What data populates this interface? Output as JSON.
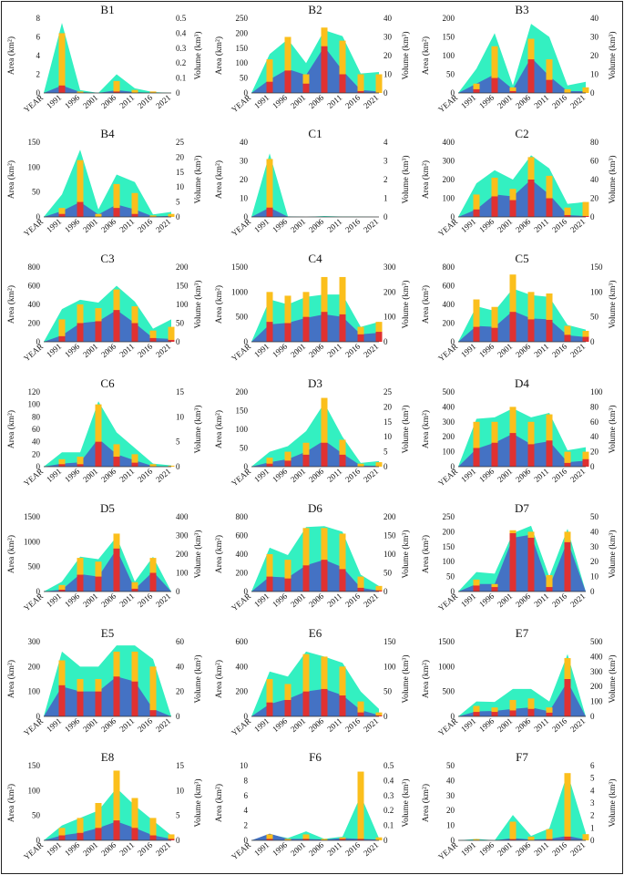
{
  "figure": {
    "colors": {
      "area_total": "#33f0c1",
      "area_lower": "#4472c4",
      "volume_bar": "#fbbf1c",
      "volume_bar_inner": "#e03131"
    },
    "xlabels": [
      "YEAR",
      "1991",
      "1996",
      "2001",
      "2006",
      "2011",
      "2016",
      "2021"
    ],
    "left_axis_label": "Area (km²)",
    "right_axis_label": "Volume (km³)"
  },
  "chart_data": [
    {
      "title": "B1",
      "type": "area",
      "ylim": [
        0,
        8
      ],
      "yticks": [
        0,
        2,
        4,
        6,
        8
      ],
      "y2lim": [
        0,
        0.5
      ],
      "y2ticks": [
        "0",
        "0.1",
        "0.2",
        "0.3",
        "0.4",
        "0.5"
      ],
      "total": [
        0,
        7.5,
        0.3,
        0,
        2,
        0.5,
        0.1,
        0
      ],
      "lower": [
        0,
        0.8,
        0.1,
        0,
        0.3,
        0.1,
        0,
        0
      ],
      "bar": [
        0,
        0.4,
        0.01,
        0,
        0.08,
        0.02,
        0.01,
        0
      ],
      "bar_inner": [
        0,
        0.05,
        0,
        0,
        0.01,
        0,
        0,
        0
      ]
    },
    {
      "title": "B2",
      "type": "area",
      "ylim": [
        0,
        250
      ],
      "yticks": [
        0,
        50,
        100,
        150,
        200,
        250
      ],
      "y2lim": [
        0,
        40
      ],
      "y2ticks": [
        "0",
        "10",
        "20",
        "30",
        "40"
      ],
      "total": [
        0,
        130,
        180,
        100,
        210,
        190,
        65,
        70
      ],
      "lower": [
        0,
        45,
        80,
        60,
        155,
        75,
        10,
        5
      ],
      "bar": [
        0,
        18,
        30,
        10,
        35,
        28,
        10,
        10
      ],
      "bar_inner": [
        0,
        6,
        12,
        5,
        25,
        10,
        1,
        0
      ]
    },
    {
      "title": "B3",
      "type": "area",
      "ylim": [
        0,
        200
      ],
      "yticks": [
        0,
        50,
        100,
        150,
        200
      ],
      "y2lim": [
        0,
        40
      ],
      "y2ticks": [
        "0",
        "10",
        "20",
        "30",
        "40"
      ],
      "total": [
        0,
        65,
        160,
        20,
        185,
        150,
        20,
        30
      ],
      "lower": [
        0,
        25,
        50,
        10,
        95,
        45,
        5,
        5
      ],
      "bar": [
        0,
        5,
        25,
        3,
        29,
        18,
        2,
        3
      ],
      "bar_inner": [
        0,
        2,
        8,
        1,
        18,
        7,
        0,
        0
      ]
    },
    {
      "title": "B4",
      "type": "area",
      "ylim": [
        0,
        150
      ],
      "yticks": [
        0,
        50,
        100,
        150
      ],
      "y2lim": [
        0,
        25
      ],
      "y2ticks": [
        "0",
        "5",
        "10",
        "15",
        "20",
        "25"
      ],
      "total": [
        0,
        45,
        135,
        15,
        85,
        70,
        5,
        10
      ],
      "lower": [
        0,
        12,
        30,
        5,
        25,
        15,
        1,
        2
      ],
      "bar": [
        0,
        3,
        19,
        1,
        11,
        8,
        0.5,
        1
      ],
      "bar_inner": [
        0,
        1,
        5,
        0,
        3,
        1,
        0,
        0
      ]
    },
    {
      "title": "C1",
      "type": "area",
      "ylim": [
        0,
        40
      ],
      "yticks": [
        0,
        10,
        20,
        30,
        40
      ],
      "y2lim": [
        0,
        4
      ],
      "y2ticks": [
        "0",
        "1",
        "2",
        "3",
        "4"
      ],
      "total": [
        0,
        34,
        0.3,
        0,
        0.5,
        0.2,
        0.1,
        0
      ],
      "lower": [
        0,
        5,
        0.1,
        0,
        0.1,
        0,
        0,
        0
      ],
      "bar": [
        0,
        3.1,
        0,
        0,
        0,
        0,
        0,
        0
      ],
      "bar_inner": [
        0,
        0.5,
        0,
        0,
        0,
        0,
        0,
        0
      ]
    },
    {
      "title": "C2",
      "type": "area",
      "ylim": [
        0,
        400
      ],
      "yticks": [
        0,
        100,
        200,
        300,
        400
      ],
      "y2lim": [
        0,
        80
      ],
      "y2ticks": [
        "0",
        "20",
        "40",
        "60",
        "80"
      ],
      "total": [
        0,
        180,
        250,
        200,
        330,
        260,
        70,
        80
      ],
      "lower": [
        0,
        40,
        120,
        110,
        200,
        120,
        10,
        5
      ],
      "bar": [
        0,
        24,
        42,
        30,
        64,
        44,
        10,
        16
      ],
      "bar_inner": [
        0,
        8,
        22,
        18,
        40,
        20,
        2,
        1
      ]
    },
    {
      "title": "C3",
      "type": "area",
      "ylim": [
        0,
        800
      ],
      "yticks": [
        0,
        200,
        400,
        600,
        800
      ],
      "y2lim": [
        0,
        200
      ],
      "y2ticks": [
        "0",
        "50",
        "100",
        "150",
        "200"
      ],
      "total": [
        0,
        350,
        450,
        420,
        600,
        430,
        140,
        240
      ],
      "lower": [
        0,
        70,
        200,
        220,
        340,
        200,
        40,
        30
      ],
      "bar": [
        0,
        60,
        100,
        90,
        140,
        95,
        30,
        40
      ],
      "bar_inner": [
        0,
        15,
        50,
        55,
        85,
        50,
        10,
        5
      ]
    },
    {
      "title": "C4",
      "type": "area",
      "ylim": [
        0,
        1500
      ],
      "yticks": [
        0,
        500,
        1000,
        1500
      ],
      "y2lim": [
        0,
        300
      ],
      "y2ticks": [
        "0",
        "100",
        "200",
        "300"
      ],
      "total": [
        0,
        850,
        750,
        900,
        950,
        950,
        300,
        400
      ],
      "lower": [
        0,
        350,
        380,
        480,
        550,
        500,
        150,
        180
      ],
      "bar": [
        0,
        200,
        185,
        200,
        260,
        260,
        60,
        80
      ],
      "bar_inner": [
        0,
        80,
        75,
        100,
        120,
        110,
        30,
        40
      ]
    },
    {
      "title": "C5",
      "type": "area",
      "ylim": [
        0,
        800
      ],
      "yticks": [
        0,
        200,
        400,
        600,
        800
      ],
      "y2lim": [
        0,
        150
      ],
      "y2ticks": [
        "0",
        "50",
        "100",
        "150"
      ],
      "total": [
        0,
        380,
        330,
        570,
        500,
        480,
        180,
        130
      ],
      "lower": [
        0,
        170,
        160,
        330,
        250,
        240,
        70,
        50
      ],
      "bar": [
        0,
        85,
        70,
        135,
        100,
        97,
        32,
        22
      ],
      "bar_inner": [
        0,
        30,
        28,
        60,
        45,
        44,
        14,
        10
      ]
    },
    {
      "title": "C6",
      "type": "area",
      "ylim": [
        0,
        120
      ],
      "yticks": [
        0,
        20,
        40,
        60,
        80,
        100,
        120
      ],
      "y2lim": [
        0,
        15
      ],
      "y2ticks": [
        "0",
        "5",
        "10",
        "15"
      ],
      "total": [
        0,
        23,
        23,
        105,
        55,
        30,
        5,
        2
      ],
      "lower": [
        0,
        5,
        7,
        45,
        20,
        10,
        1,
        0
      ],
      "bar": [
        0,
        1.5,
        2,
        12.5,
        4.5,
        2.5,
        0.5,
        0.2
      ],
      "bar_inner": [
        0,
        0.5,
        0.5,
        5,
        2,
        0.8,
        0,
        0
      ]
    },
    {
      "title": "D3",
      "type": "area",
      "ylim": [
        0,
        200
      ],
      "yticks": [
        0,
        50,
        100,
        150,
        200
      ],
      "y2lim": [
        0,
        25
      ],
      "y2ticks": [
        "0",
        "5",
        "10",
        "15",
        "20",
        "25"
      ],
      "total": [
        0,
        40,
        55,
        95,
        170,
        80,
        10,
        15
      ],
      "lower": [
        0,
        12,
        20,
        40,
        70,
        35,
        3,
        2
      ],
      "bar": [
        0,
        3,
        5,
        8,
        23,
        9,
        1,
        1.5
      ],
      "bar_inner": [
        0,
        1,
        2,
        4,
        8,
        4,
        0,
        0
      ]
    },
    {
      "title": "D4",
      "type": "area",
      "ylim": [
        0,
        500
      ],
      "yticks": [
        0,
        100,
        200,
        300,
        400,
        500
      ],
      "y2lim": [
        0,
        100
      ],
      "y2ticks": [
        "0",
        "20",
        "40",
        "60",
        "80",
        "100"
      ],
      "total": [
        0,
        320,
        330,
        390,
        330,
        360,
        110,
        130
      ],
      "lower": [
        0,
        120,
        160,
        220,
        150,
        170,
        30,
        40
      ],
      "bar": [
        0,
        60,
        60,
        80,
        60,
        70,
        20,
        20
      ],
      "bar_inner": [
        0,
        25,
        32,
        45,
        30,
        35,
        5,
        10
      ]
    },
    {
      "title": "D5",
      "type": "area",
      "ylim": [
        0,
        1500
      ],
      "yticks": [
        0,
        500,
        1000,
        1500
      ],
      "y2lim": [
        0,
        400
      ],
      "y2ticks": [
        "0",
        "100",
        "200",
        "300",
        "400"
      ],
      "total": [
        0,
        200,
        700,
        650,
        1100,
        200,
        700,
        0
      ],
      "lower": [
        0,
        40,
        350,
        300,
        850,
        50,
        400,
        0
      ],
      "bar": [
        0,
        35,
        180,
        160,
        310,
        50,
        180,
        0
      ],
      "bar_inner": [
        0,
        10,
        90,
        80,
        230,
        15,
        100,
        0
      ]
    },
    {
      "title": "D6",
      "type": "area",
      "ylim": [
        0,
        800
      ],
      "yticks": [
        0,
        200,
        400,
        600,
        800
      ],
      "y2lim": [
        0,
        200
      ],
      "y2ticks": [
        "0",
        "50",
        "100",
        "150",
        "200"
      ],
      "total": [
        0,
        470,
        390,
        690,
        700,
        640,
        180,
        60
      ],
      "lower": [
        0,
        160,
        150,
        280,
        340,
        260,
        40,
        10
      ],
      "bar": [
        0,
        100,
        85,
        170,
        170,
        155,
        40,
        15
      ],
      "bar_inner": [
        0,
        40,
        35,
        70,
        85,
        60,
        10,
        3
      ]
    },
    {
      "title": "D7",
      "type": "area",
      "ylim": [
        0,
        250
      ],
      "yticks": [
        0,
        50,
        100,
        150,
        200,
        250
      ],
      "y2lim": [
        0,
        50
      ],
      "y2ticks": [
        "0",
        "10",
        "20",
        "30",
        "40",
        "50"
      ],
      "total": [
        0,
        65,
        60,
        195,
        220,
        50,
        210,
        0
      ],
      "lower": [
        0,
        25,
        25,
        180,
        190,
        15,
        170,
        0
      ],
      "bar": [
        0,
        8,
        5,
        41,
        40,
        11,
        40,
        0
      ],
      "bar_inner": [
        0,
        4,
        3,
        39,
        36,
        3,
        33,
        0
      ]
    },
    {
      "title": "E5",
      "type": "area",
      "ylim": [
        0,
        300
      ],
      "yticks": [
        0,
        100,
        200,
        300
      ],
      "y2lim": [
        0,
        60
      ],
      "y2ticks": [
        "0",
        "20",
        "40",
        "60"
      ],
      "total": [
        0,
        260,
        200,
        200,
        285,
        285,
        230,
        0
      ],
      "lower": [
        0,
        120,
        100,
        100,
        160,
        140,
        30,
        0
      ],
      "bar": [
        0,
        45,
        30,
        30,
        52,
        52,
        40,
        0
      ],
      "bar_inner": [
        0,
        25,
        20,
        20,
        32,
        28,
        5,
        0
      ]
    },
    {
      "title": "E6",
      "type": "area",
      "ylim": [
        0,
        600
      ],
      "yticks": [
        0,
        200,
        400,
        600
      ],
      "y2lim": [
        0,
        150
      ],
      "y2ticks": [
        "0",
        "50",
        "100",
        "150"
      ],
      "total": [
        0,
        360,
        320,
        520,
        480,
        430,
        200,
        60
      ],
      "lower": [
        0,
        100,
        140,
        200,
        220,
        170,
        50,
        10
      ],
      "bar": [
        0,
        75,
        65,
        125,
        120,
        100,
        30,
        8
      ],
      "bar_inner": [
        0,
        28,
        33,
        50,
        55,
        42,
        8,
        2
      ]
    },
    {
      "title": "E7",
      "type": "area",
      "ylim": [
        0,
        1500
      ],
      "yticks": [
        0,
        500,
        1000,
        1500
      ],
      "y2lim": [
        0,
        500
      ],
      "y2ticks": [
        "0",
        "100",
        "200",
        "300",
        "400",
        "500"
      ],
      "total": [
        0,
        300,
        290,
        550,
        550,
        300,
        1250,
        0
      ],
      "lower": [
        0,
        100,
        110,
        150,
        180,
        100,
        700,
        0
      ],
      "bar": [
        0,
        70,
        60,
        110,
        120,
        60,
        390,
        0
      ],
      "bar_inner": [
        0,
        30,
        30,
        40,
        50,
        25,
        250,
        0
      ]
    },
    {
      "title": "E8",
      "type": "area",
      "ylim": [
        0,
        150
      ],
      "yticks": [
        0,
        50,
        100,
        150
      ],
      "y2lim": [
        0,
        15
      ],
      "y2ticks": [
        "0",
        "5",
        "10",
        "15"
      ],
      "total": [
        0,
        30,
        45,
        60,
        105,
        70,
        40,
        10
      ],
      "lower": [
        0,
        10,
        15,
        25,
        38,
        25,
        10,
        3
      ],
      "bar": [
        0,
        2.5,
        4.5,
        7.5,
        14,
        8.5,
        4.5,
        1.2
      ],
      "bar_inner": [
        0,
        1,
        1.5,
        2.5,
        4,
        2.5,
        1,
        0.3
      ]
    },
    {
      "title": "F6",
      "type": "area",
      "ylim": [
        0,
        10
      ],
      "yticks": [
        0,
        2,
        4,
        6,
        8,
        10
      ],
      "y2lim": [
        0,
        0.5
      ],
      "y2ticks": [
        "0",
        "0.1",
        "0.2",
        "0.3",
        "0.4",
        "0.5"
      ],
      "total": [
        0,
        0.8,
        0.3,
        1.2,
        0.2,
        0.5,
        6,
        0.3
      ],
      "lower": [
        0,
        0.9,
        0.2,
        0.2,
        0.1,
        0.3,
        0.2,
        0.1
      ],
      "bar": [
        0,
        0.04,
        0.01,
        0.04,
        0.01,
        0.02,
        0.46,
        0.02
      ],
      "bar_inner": [
        0,
        0.01,
        0,
        0.01,
        0,
        0.01,
        0.01,
        0
      ]
    },
    {
      "title": "F7",
      "type": "area",
      "ylim": [
        0,
        50
      ],
      "yticks": [
        0,
        10,
        20,
        30,
        40,
        50
      ],
      "y2lim": [
        0,
        6
      ],
      "y2ticks": [
        "0",
        "1",
        "2",
        "3",
        "4",
        "5",
        "6"
      ],
      "total": [
        0,
        1,
        0,
        17,
        3,
        8,
        45,
        5
      ],
      "lower": [
        0,
        0.2,
        0,
        1.5,
        0.5,
        1,
        3,
        0.5
      ],
      "bar": [
        0,
        0.1,
        0,
        1.5,
        0.3,
        0.9,
        5.4,
        0.5
      ],
      "bar_inner": [
        0,
        0,
        0,
        0.1,
        0,
        0.1,
        0.3,
        0
      ]
    }
  ]
}
